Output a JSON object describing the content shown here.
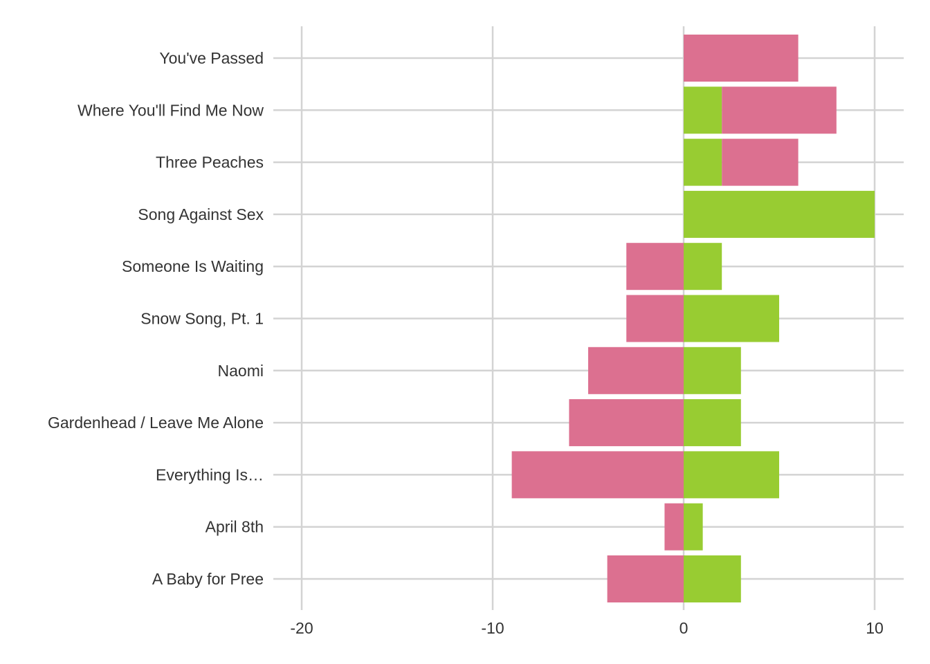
{
  "chart_data": {
    "type": "bar",
    "orientation": "horizontal",
    "stacked": "diverging",
    "title": "",
    "xlabel": "",
    "ylabel": "",
    "xlim": [
      -20,
      11
    ],
    "x_ticks": [
      -20,
      -10,
      0,
      10
    ],
    "x_tick_labels": [
      "-20",
      "-10",
      "0",
      "10"
    ],
    "grid": true,
    "legend": "none",
    "categories": [
      "You've Passed",
      "Where You'll Find Me Now",
      "Three Peaches",
      "Song Against Sex",
      "Someone Is Waiting",
      "Snow Song, Pt. 1",
      "Naomi",
      "Gardenhead / Leave Me Alone",
      "Everything Is…",
      "April 8th",
      "A Baby for Pree"
    ],
    "series": [
      {
        "color": "#98cc32",
        "values": [
          0,
          2,
          2,
          10,
          2,
          5,
          3,
          3,
          5,
          1,
          3
        ]
      },
      {
        "color": "#dc7090",
        "values": [
          6,
          6,
          4,
          0,
          -3,
          -3,
          -5,
          -6,
          -9,
          -1,
          -4
        ]
      }
    ]
  }
}
